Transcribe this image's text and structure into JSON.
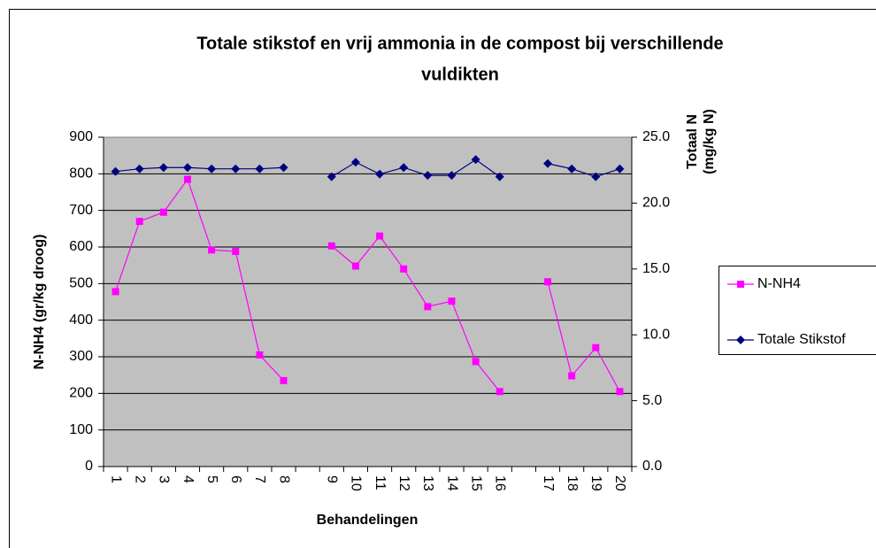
{
  "chart_data": {
    "type": "line",
    "title": [
      "Totale stikstof en vrij ammonia in de compost bij verschillende",
      "vuldikten"
    ],
    "x_label": "Behandelingen",
    "y_label": "N-NH4 (gr/kg droog)",
    "y2_label": [
      "Totaal N",
      "(mg/kg N)"
    ],
    "categories": [
      "1",
      "2",
      "3",
      "4",
      "5",
      "6",
      "7",
      "8",
      null,
      "9",
      "10",
      "11",
      "12",
      "13",
      "14",
      "15",
      "16",
      null,
      "17",
      "18",
      "19",
      "20"
    ],
    "ylim": [
      0,
      900
    ],
    "yticks": [
      0,
      100,
      200,
      300,
      400,
      500,
      600,
      700,
      800,
      900
    ],
    "y2lim": [
      0,
      25
    ],
    "y2ticks": [
      {
        "value": 0,
        "label": "0.0"
      },
      {
        "value": 5,
        "label": "5.0"
      },
      {
        "value": 10,
        "label": "10.0"
      },
      {
        "value": 15,
        "label": "15.0"
      },
      {
        "value": 20,
        "label": "20.0"
      },
      {
        "value": 25,
        "label": "25.0"
      }
    ],
    "grid": true,
    "legend": "right",
    "series": [
      {
        "name": "N-NH4",
        "color": "#ff00ff",
        "marker": "square",
        "values": [
          478,
          670,
          695,
          785,
          592,
          588,
          305,
          235,
          null,
          603,
          548,
          630,
          540,
          437,
          452,
          287,
          205,
          null,
          505,
          248,
          325,
          205
        ]
      },
      {
        "name": "Totale Stikstof",
        "color": "#000080",
        "marker": "diamond",
        "axis": "y2",
        "values": [
          22.4,
          22.6,
          22.7,
          22.7,
          22.6,
          22.6,
          22.6,
          22.7,
          null,
          22.0,
          23.1,
          22.2,
          22.7,
          22.1,
          22.1,
          23.3,
          22.0,
          null,
          23.0,
          22.6,
          22.0,
          22.6
        ]
      }
    ]
  }
}
